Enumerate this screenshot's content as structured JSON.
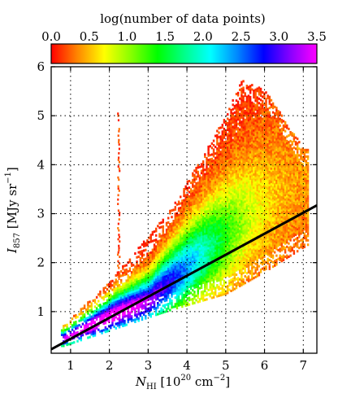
{
  "chart_data": {
    "type": "heatmap",
    "colorbar": {
      "title": "log(number of data points)",
      "ticks": [
        "0.0",
        "0.5",
        "1.0",
        "1.5",
        "2.0",
        "2.5",
        "3.0",
        "3.5"
      ],
      "range": [
        0,
        3.5
      ],
      "colors": [
        "#ff0000",
        "#ff8800",
        "#ffff00",
        "#88ff00",
        "#00ff00",
        "#00ff88",
        "#00ffff",
        "#0088ff",
        "#0000ff",
        "#8800ff",
        "#ff00ff"
      ]
    },
    "xlabel": "N_HI [10^20 cm^-2]",
    "xlabel_parts": {
      "main": "N",
      "sub": "HI",
      "unit_open": " [10",
      "sup1": "20",
      "unit_mid": " cm",
      "sup2": "−2",
      "unit_close": "]"
    },
    "ylabel": "I_857 [MJy sr^-1]",
    "ylabel_parts": {
      "main": "I",
      "sub": "857",
      "unit_open": " [MJy sr",
      "sup": "−1",
      "unit_close": "]"
    },
    "xlim": [
      0.5,
      7.35
    ],
    "ylim": [
      0.15,
      6.0
    ],
    "xticks": [
      1,
      2,
      3,
      4,
      5,
      6,
      7
    ],
    "yticks": [
      1,
      2,
      3,
      4,
      5,
      6
    ],
    "grid": true,
    "fit_line": {
      "x": [
        0.5,
        7.35
      ],
      "y": [
        0.23,
        3.17
      ],
      "color": "#000000"
    },
    "density_model": {
      "core_curve": {
        "x": [
          0.8,
          2.2,
          3.0,
          4.0,
          5.5,
          7.0
        ],
        "y": [
          0.42,
          0.95,
          1.2,
          1.9,
          2.9,
          3.6
        ]
      },
      "spread_fraction": 0.28,
      "peak_log_count": 3.4,
      "peak_x": 1.7,
      "outlier_column": {
        "x": 2.22,
        "ymin": 1.6,
        "ymax": 5.1
      },
      "upper_envelope": {
        "x": [
          0.8,
          2.0,
          3.5,
          4.5,
          5.4,
          6.0,
          7.0
        ],
        "y": [
          0.7,
          1.6,
          3.0,
          4.3,
          5.7,
          5.5,
          4.3
        ]
      },
      "lower_envelope": {
        "x": [
          0.8,
          2.0,
          3.5,
          5.0,
          6.0,
          7.0
        ],
        "y": [
          0.28,
          0.6,
          1.0,
          1.35,
          1.8,
          2.3
        ]
      }
    }
  }
}
